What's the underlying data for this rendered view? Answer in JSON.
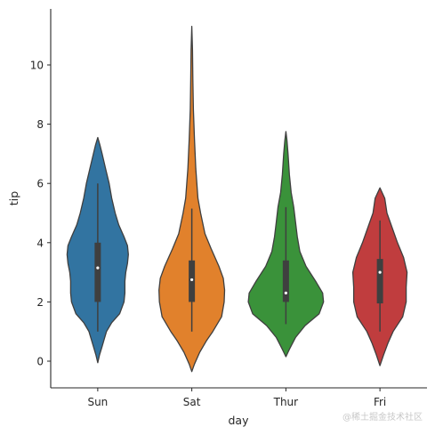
{
  "chart_data": {
    "type": "violin",
    "xlabel": "day",
    "ylabel": "tip",
    "categories": [
      "Sun",
      "Sat",
      "Thur",
      "Fri"
    ],
    "ylim": [
      -0.9,
      11.9
    ],
    "yticks": [
      0,
      2,
      4,
      6,
      8,
      10
    ],
    "grid": false,
    "colors": [
      "#3274a1",
      "#e1812c",
      "#3a923a",
      "#c03d3e"
    ],
    "violins": [
      {
        "category": "Sun",
        "color": "#3274a1",
        "profile": [
          [
            -0.05,
            0
          ],
          [
            0.2,
            0.02
          ],
          [
            0.5,
            0.05
          ],
          [
            0.8,
            0.08
          ],
          [
            1.0,
            0.1
          ],
          [
            1.3,
            0.16
          ],
          [
            1.6,
            0.25
          ],
          [
            2.0,
            0.3
          ],
          [
            2.3,
            0.31
          ],
          [
            2.7,
            0.31
          ],
          [
            3.0,
            0.32
          ],
          [
            3.3,
            0.34
          ],
          [
            3.6,
            0.35
          ],
          [
            3.9,
            0.34
          ],
          [
            4.2,
            0.3
          ],
          [
            4.6,
            0.24
          ],
          [
            5.0,
            0.2
          ],
          [
            5.5,
            0.16
          ],
          [
            6.0,
            0.13
          ],
          [
            6.5,
            0.09
          ],
          [
            7.0,
            0.05
          ],
          [
            7.3,
            0.025
          ],
          [
            7.55,
            0
          ]
        ],
        "q1": 2.0,
        "median": 3.15,
        "q3": 4.0,
        "whisker_low": 1.0,
        "whisker_high": 6.0
      },
      {
        "category": "Sat",
        "color": "#e1812c",
        "profile": [
          [
            -0.35,
            0
          ],
          [
            -0.1,
            0.03
          ],
          [
            0.3,
            0.09
          ],
          [
            0.7,
            0.17
          ],
          [
            1.0,
            0.24
          ],
          [
            1.5,
            0.34
          ],
          [
            2.0,
            0.37
          ],
          [
            2.4,
            0.375
          ],
          [
            2.8,
            0.36
          ],
          [
            3.2,
            0.31
          ],
          [
            3.8,
            0.22
          ],
          [
            4.3,
            0.15
          ],
          [
            5.0,
            0.1
          ],
          [
            5.5,
            0.07
          ],
          [
            6.5,
            0.045
          ],
          [
            7.5,
            0.03
          ],
          [
            8.5,
            0.018
          ],
          [
            9.5,
            0.012
          ],
          [
            10.5,
            0.008
          ],
          [
            11.3,
            0
          ]
        ],
        "q1": 2.0,
        "median": 2.75,
        "q3": 3.4,
        "whisker_low": 1.0,
        "whisker_high": 5.15
      },
      {
        "category": "Thur",
        "color": "#3a923a",
        "profile": [
          [
            0.15,
            0
          ],
          [
            0.4,
            0.04
          ],
          [
            0.8,
            0.11
          ],
          [
            1.2,
            0.22
          ],
          [
            1.6,
            0.38
          ],
          [
            2.0,
            0.43
          ],
          [
            2.3,
            0.42
          ],
          [
            2.7,
            0.34
          ],
          [
            3.2,
            0.23
          ],
          [
            3.7,
            0.16
          ],
          [
            4.2,
            0.13
          ],
          [
            4.7,
            0.11
          ],
          [
            5.2,
            0.09
          ],
          [
            5.7,
            0.06
          ],
          [
            6.3,
            0.04
          ],
          [
            7.0,
            0.025
          ],
          [
            7.45,
            0.012
          ],
          [
            7.75,
            0
          ]
        ],
        "q1": 2.0,
        "median": 2.3,
        "q3": 3.4,
        "whisker_low": 1.25,
        "whisker_high": 5.2
      },
      {
        "category": "Fri",
        "color": "#c03d3e",
        "profile": [
          [
            -0.15,
            0
          ],
          [
            0.2,
            0.04
          ],
          [
            0.6,
            0.09
          ],
          [
            1.0,
            0.15
          ],
          [
            1.5,
            0.26
          ],
          [
            2.0,
            0.3
          ],
          [
            2.5,
            0.3
          ],
          [
            3.0,
            0.31
          ],
          [
            3.5,
            0.27
          ],
          [
            4.0,
            0.2
          ],
          [
            4.5,
            0.14
          ],
          [
            5.0,
            0.08
          ],
          [
            5.5,
            0.055
          ],
          [
            5.85,
            0
          ]
        ],
        "q1": 1.95,
        "median": 3.0,
        "q3": 3.45,
        "whisker_low": 1.0,
        "whisker_high": 4.75
      }
    ]
  },
  "watermark": "@稀土掘金技术社区"
}
